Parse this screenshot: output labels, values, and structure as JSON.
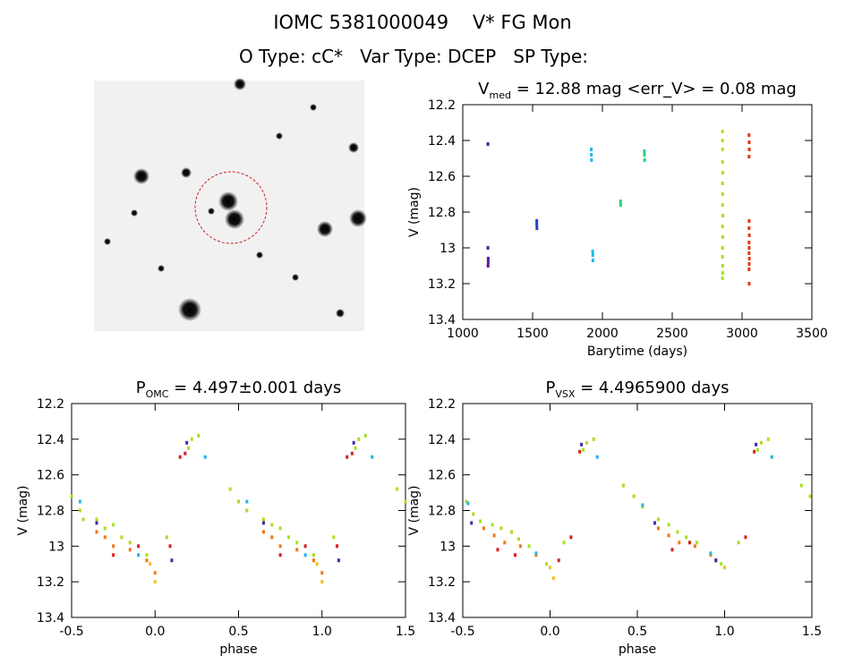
{
  "header": {
    "title": "IOMC 5381000049    V* FG Mon",
    "subtitle": "O Type: cC*   Var Type: DCEP   SP Type:"
  },
  "chart_data": [
    {
      "type": "scatter",
      "title_parts": [
        {
          "text": "V"
        },
        {
          "text": "med",
          "sub": true
        },
        {
          "text": " = 12.88 mag <err_V> = 0.08 mag"
        }
      ],
      "xlabel": "Barytime (days)",
      "ylabel": "V (mag)",
      "xlim": [
        1000,
        3500
      ],
      "ylim": [
        13.4,
        12.2
      ],
      "xticks": [
        1000,
        1500,
        2000,
        2500,
        3000,
        3500
      ],
      "yticks": [
        12.2,
        12.4,
        12.6,
        12.8,
        13.0,
        13.2,
        13.4
      ],
      "series": [
        {
          "color": "#5a1a9a",
          "x": [
            1180,
            1180,
            1182,
            1182,
            1181
          ],
          "values": [
            12.42,
            13.0,
            13.06,
            13.08,
            13.1
          ]
        },
        {
          "color": "#2040d0",
          "x": [
            1530,
            1530,
            1531
          ],
          "values": [
            12.85,
            12.87,
            12.89
          ]
        },
        {
          "color": "#20b8e8",
          "x": [
            1920,
            1921,
            1922,
            1930,
            1931,
            1932
          ],
          "values": [
            12.45,
            12.48,
            12.51,
            13.02,
            13.04,
            13.07
          ]
        },
        {
          "color": "#30d080",
          "x": [
            2130,
            2131,
            2300,
            2301,
            2302
          ],
          "values": [
            12.74,
            12.76,
            12.46,
            12.48,
            12.51
          ]
        },
        {
          "color": "#a8e020",
          "x": [
            2860,
            2860,
            2861,
            2860,
            2862,
            2860,
            2861,
            2860,
            2862,
            2860,
            2861,
            2860,
            2860,
            2861,
            2862,
            2860
          ],
          "values": [
            12.35,
            12.4,
            12.45,
            12.52,
            12.58,
            12.64,
            12.7,
            12.76,
            12.82,
            12.88,
            12.94,
            13.0,
            13.05,
            13.1,
            13.14,
            13.17
          ]
        },
        {
          "color": "#e03a10",
          "x": [
            3050,
            3051,
            3052,
            3050,
            3051,
            3050,
            3052,
            3050,
            3051,
            3050,
            3052,
            3051,
            3050,
            3051
          ],
          "values": [
            12.37,
            12.41,
            12.45,
            12.49,
            12.85,
            12.89,
            12.93,
            12.97,
            13.0,
            13.03,
            13.06,
            13.09,
            13.12,
            13.2
          ]
        }
      ]
    },
    {
      "type": "scatter",
      "title_parts": [
        {
          "text": "P"
        },
        {
          "text": "OMC",
          "sub": true
        },
        {
          "text": " = 4.497±0.001 days"
        }
      ],
      "xlabel": "phase",
      "ylabel": "V (mag)",
      "xlim": [
        -0.5,
        1.5
      ],
      "ylim": [
        13.4,
        12.2
      ],
      "xticks": [
        -0.5,
        {
          "value": 0,
          "label": "0.0"
        },
        0.5,
        {
          "value": 1,
          "label": "1.0"
        },
        1.5
      ],
      "yticks": [
        12.2,
        12.4,
        12.6,
        12.8,
        13.0,
        13.2,
        13.4
      ],
      "series": [
        {
          "color": "#a8e020",
          "x": [
            -0.5,
            -0.45,
            -0.43,
            -0.35,
            -0.3,
            -0.25,
            -0.2,
            -0.15,
            -0.05,
            0.07,
            0.2,
            0.22,
            0.26,
            0.45,
            0.5,
            0.55,
            0.65,
            0.7,
            0.75,
            0.8,
            0.85,
            0.95,
            1.07,
            1.2,
            1.22,
            1.26,
            1.45,
            1.5
          ],
          "values": [
            12.72,
            12.8,
            12.85,
            12.85,
            12.9,
            12.88,
            12.95,
            12.98,
            13.05,
            12.95,
            12.45,
            12.4,
            12.38,
            12.68,
            12.75,
            12.8,
            12.85,
            12.88,
            12.9,
            12.95,
            12.98,
            13.05,
            12.95,
            12.45,
            12.4,
            12.38,
            12.68,
            12.75
          ]
        },
        {
          "color": "#f07818",
          "x": [
            -0.35,
            -0.3,
            -0.25,
            -0.15,
            -0.05,
            0.0,
            0.65,
            0.7,
            0.75,
            0.85,
            0.95,
            1.0
          ],
          "values": [
            12.92,
            12.95,
            13.0,
            13.02,
            13.08,
            13.15,
            12.92,
            12.95,
            13.0,
            13.02,
            13.08,
            13.15
          ]
        },
        {
          "color": "#d82020",
          "x": [
            -0.25,
            -0.1,
            0.09,
            0.18,
            0.15,
            0.75,
            0.9,
            1.09,
            1.18,
            1.15
          ],
          "values": [
            13.05,
            13.0,
            13.0,
            12.48,
            12.5,
            13.05,
            13.0,
            13.0,
            12.48,
            12.5
          ]
        },
        {
          "color": "#20b8e8",
          "x": [
            -0.45,
            -0.1,
            0.3,
            0.55,
            0.9,
            1.3
          ],
          "values": [
            12.75,
            13.05,
            12.5,
            12.75,
            13.05,
            12.5
          ]
        },
        {
          "color": "#4a2aaa",
          "x": [
            -0.35,
            0.1,
            0.19,
            0.65,
            1.1,
            1.19
          ],
          "values": [
            12.87,
            13.08,
            12.42,
            12.87,
            13.08,
            12.42
          ]
        },
        {
          "color": "#f0c020",
          "x": [
            -0.03,
            0.0,
            0.97,
            1.0
          ],
          "values": [
            13.1,
            13.2,
            13.1,
            13.2
          ]
        }
      ]
    },
    {
      "type": "scatter",
      "title_parts": [
        {
          "text": "P"
        },
        {
          "text": "VSX",
          "sub": true
        },
        {
          "text": " = 4.4965900 days"
        }
      ],
      "xlabel": "phase",
      "ylabel": "V (mag)",
      "xlim": [
        -0.5,
        1.5
      ],
      "ylim": [
        13.4,
        12.2
      ],
      "xticks": [
        -0.5,
        {
          "value": 0,
          "label": "0.0"
        },
        0.5,
        {
          "value": 1,
          "label": "1.0"
        },
        1.5
      ],
      "yticks": [
        12.2,
        12.4,
        12.6,
        12.8,
        13.0,
        13.2,
        13.4
      ],
      "series": [
        {
          "color": "#a8e020",
          "x": [
            -0.48,
            -0.44,
            -0.4,
            -0.33,
            -0.28,
            -0.22,
            -0.18,
            -0.12,
            -0.02,
            0.08,
            0.19,
            0.21,
            0.25,
            0.42,
            0.48,
            0.53,
            0.62,
            0.68,
            0.73,
            0.78,
            0.84,
            0.98,
            1.08,
            1.19,
            1.21,
            1.25,
            1.44,
            1.49
          ],
          "values": [
            12.75,
            12.82,
            12.86,
            12.88,
            12.9,
            12.92,
            12.96,
            13.0,
            13.1,
            12.98,
            12.46,
            12.42,
            12.4,
            12.66,
            12.72,
            12.78,
            12.85,
            12.88,
            12.92,
            12.95,
            12.98,
            13.1,
            12.98,
            12.46,
            12.42,
            12.4,
            12.66,
            12.72
          ]
        },
        {
          "color": "#f07818",
          "x": [
            -0.38,
            -0.32,
            -0.26,
            -0.17,
            -0.08,
            0.62,
            0.68,
            0.74,
            0.83,
            0.92
          ],
          "values": [
            12.9,
            12.94,
            12.98,
            13.0,
            13.05,
            12.9,
            12.94,
            12.98,
            13.0,
            13.05
          ]
        },
        {
          "color": "#d82020",
          "x": [
            -0.3,
            -0.2,
            0.05,
            0.12,
            0.17,
            0.7,
            0.8,
            0.95,
            1.12,
            1.17
          ],
          "values": [
            13.02,
            13.05,
            13.08,
            12.95,
            12.47,
            13.02,
            12.98,
            13.08,
            12.95,
            12.47
          ]
        },
        {
          "color": "#20b8e8",
          "x": [
            -0.47,
            -0.08,
            0.27,
            0.53,
            0.92,
            1.27
          ],
          "values": [
            12.76,
            13.04,
            12.5,
            12.77,
            13.04,
            12.5
          ]
        },
        {
          "color": "#4a2aaa",
          "x": [
            -0.45,
            0.18,
            0.6,
            0.95,
            1.18
          ],
          "values": [
            12.87,
            12.43,
            12.87,
            13.08,
            12.43
          ]
        },
        {
          "color": "#f0c020",
          "x": [
            0.0,
            0.02,
            1.0
          ],
          "values": [
            13.12,
            13.18,
            13.12
          ]
        }
      ]
    }
  ]
}
